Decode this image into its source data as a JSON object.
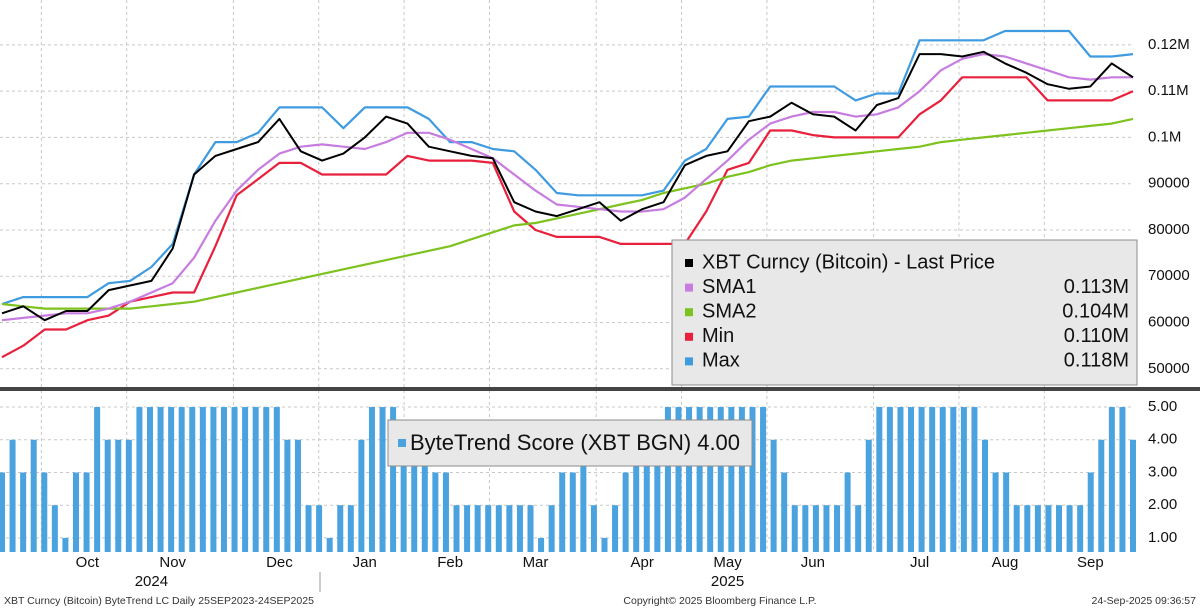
{
  "chart_data": [
    {
      "type": "line",
      "categories": [
        null,
        null,
        null,
        null,
        "Oct",
        null,
        null,
        null,
        "Nov",
        null,
        null,
        null,
        null,
        "Dec",
        null,
        null,
        null,
        "Jan",
        null,
        null,
        null,
        "Feb",
        null,
        null,
        null,
        "Mar",
        null,
        null,
        null,
        null,
        "Apr",
        null,
        null,
        null,
        "May",
        null,
        null,
        null,
        "Jun",
        null,
        null,
        null,
        null,
        "Jul",
        null,
        null,
        null,
        "Aug",
        null,
        null,
        null,
        "Sep",
        null,
        null
      ],
      "year_labels": [
        null,
        null,
        null,
        null,
        null,
        null,
        null,
        "2024",
        null,
        null,
        null,
        null,
        null,
        null,
        null,
        null,
        null,
        null,
        null,
        null,
        null,
        null,
        null,
        null,
        null,
        null,
        null,
        null,
        null,
        null,
        null,
        null,
        null,
        null,
        "2025",
        null,
        null,
        null,
        null,
        null,
        null,
        null,
        null,
        null,
        null,
        null,
        null,
        null,
        null,
        null,
        null,
        null,
        null,
        null
      ],
      "ylim": [
        46500,
        129700
      ],
      "yticks": [
        {
          "value": 120000,
          "label": "0.12M"
        },
        {
          "value": 110000,
          "label": "0.11M"
        },
        {
          "value": 100000,
          "label": "0.1M"
        },
        90000,
        80000,
        70000,
        60000,
        50000
      ],
      "grid": true,
      "series": [
        {
          "name": "XBT Curncy (Bitcoin) - Last Price",
          "color": "#000000",
          "values": [
            62000,
            63500,
            60500,
            62500,
            62500,
            67000,
            68000,
            69000,
            76000,
            92000,
            96000,
            97500,
            99000,
            104000,
            97000,
            95000,
            96500,
            100000,
            104500,
            103000,
            98000,
            97000,
            96000,
            95500,
            86000,
            84000,
            83000,
            84500,
            86000,
            82000,
            84500,
            86000,
            94000,
            96000,
            97000,
            103500,
            104500,
            107500,
            105000,
            104500,
            101500,
            107000,
            108500,
            118000,
            118000,
            117500,
            118500,
            116000,
            114000,
            111500,
            110500,
            111000,
            116000,
            113000
          ]
        },
        {
          "name": "SMA1",
          "legend_value": "0.113M",
          "color": "#c77de0",
          "values": [
            60500,
            61000,
            61500,
            62000,
            62000,
            63000,
            64500,
            66500,
            68500,
            74000,
            82000,
            88500,
            93000,
            96500,
            98000,
            98500,
            98000,
            97500,
            99000,
            101000,
            101000,
            99500,
            97500,
            95500,
            92000,
            88500,
            85500,
            85000,
            84500,
            84000,
            84000,
            84500,
            87000,
            91000,
            95000,
            99500,
            103000,
            104500,
            105500,
            105500,
            104500,
            105000,
            106500,
            110000,
            114500,
            117000,
            118000,
            117500,
            116000,
            114500,
            113000,
            112500,
            113000,
            113000
          ]
        },
        {
          "name": "SMA2",
          "legend_value": "0.104M",
          "color": "#7dc21e",
          "values": [
            64000,
            63500,
            63000,
            63000,
            63000,
            63000,
            63000,
            63500,
            64000,
            64500,
            65500,
            66500,
            67500,
            68500,
            69500,
            70500,
            71500,
            72500,
            73500,
            74500,
            75500,
            76500,
            78000,
            79500,
            81000,
            81500,
            82500,
            83500,
            84500,
            85500,
            86500,
            88000,
            89000,
            90000,
            91500,
            92500,
            94000,
            95000,
            95500,
            96000,
            96500,
            97000,
            97500,
            98000,
            99000,
            99500,
            100000,
            100500,
            101000,
            101500,
            102000,
            102500,
            103000,
            104000
          ]
        },
        {
          "name": "Min",
          "legend_value": "0.110M",
          "color": "#e8203c",
          "values": [
            52500,
            55000,
            58500,
            58500,
            60500,
            61500,
            64500,
            65500,
            66500,
            66500,
            76500,
            87500,
            91000,
            94500,
            94500,
            92000,
            92000,
            92000,
            92000,
            96000,
            95000,
            95000,
            95000,
            94500,
            84000,
            80000,
            78500,
            78500,
            78500,
            77000,
            77000,
            77000,
            77000,
            84000,
            93000,
            94500,
            101500,
            101500,
            100500,
            100000,
            100000,
            100000,
            100000,
            105000,
            108000,
            113000,
            113000,
            113000,
            113000,
            108000,
            108000,
            108000,
            108000,
            110000
          ]
        },
        {
          "name": "Max",
          "legend_value": "0.118M",
          "color": "#3f9be0",
          "values": [
            64000,
            65500,
            65500,
            65500,
            65500,
            68500,
            69000,
            72000,
            77000,
            92000,
            99000,
            99000,
            101000,
            106500,
            106500,
            106500,
            102000,
            106500,
            106500,
            106500,
            104000,
            99000,
            99000,
            97500,
            97000,
            93000,
            88000,
            87500,
            87500,
            87500,
            87500,
            88500,
            95000,
            97500,
            104000,
            104500,
            111000,
            111000,
            111000,
            111000,
            108000,
            109500,
            109500,
            121000,
            121000,
            121000,
            121000,
            123000,
            123000,
            123000,
            123000,
            117500,
            117500,
            118000
          ]
        }
      ]
    },
    {
      "type": "bar",
      "ylim": [
        0.57,
        5.46
      ],
      "yticks": [
        {
          "value": 5,
          "label": "5.00"
        },
        {
          "value": 4,
          "label": "4.00"
        },
        {
          "value": 3,
          "label": "3.00"
        },
        {
          "value": 2,
          "label": "2.00"
        },
        {
          "value": 1,
          "label": "1.00"
        }
      ],
      "grid": true,
      "series": [
        {
          "name": "ByteTrend Score (XBT BGN)",
          "legend_value": "4.00",
          "color": "#4aa3df",
          "values": [
            3,
            4,
            3,
            4,
            3,
            2,
            1,
            3,
            3,
            5,
            4,
            4,
            4,
            5,
            5,
            5,
            5,
            5,
            5,
            5,
            5,
            5,
            5,
            5,
            5,
            5,
            5,
            4,
            4,
            2,
            2,
            1,
            2,
            2,
            4,
            5,
            5,
            5,
            4,
            4,
            4,
            3,
            3,
            2,
            2,
            2,
            2,
            2,
            2,
            2,
            2,
            1,
            2,
            3,
            3,
            4,
            2,
            1,
            2,
            3,
            4,
            4,
            4,
            5,
            5,
            5,
            5,
            5,
            5,
            5,
            5,
            5,
            5,
            4,
            3,
            2,
            2,
            2,
            2,
            2,
            3,
            2,
            4,
            5,
            5,
            5,
            5,
            5,
            5,
            5,
            5,
            5,
            5,
            4,
            3,
            3,
            2,
            2,
            2,
            2,
            2,
            2,
            2,
            3,
            4,
            5,
            5,
            4
          ]
        }
      ]
    }
  ],
  "footer": {
    "left": "XBT Curncy (Bitcoin) ByteTrend LC  Daily 25SEP2023-24SEP2025",
    "center": "Copyright© 2025 Bloomberg Finance L.P.",
    "right": "24-Sep-2025 09:36:57"
  }
}
